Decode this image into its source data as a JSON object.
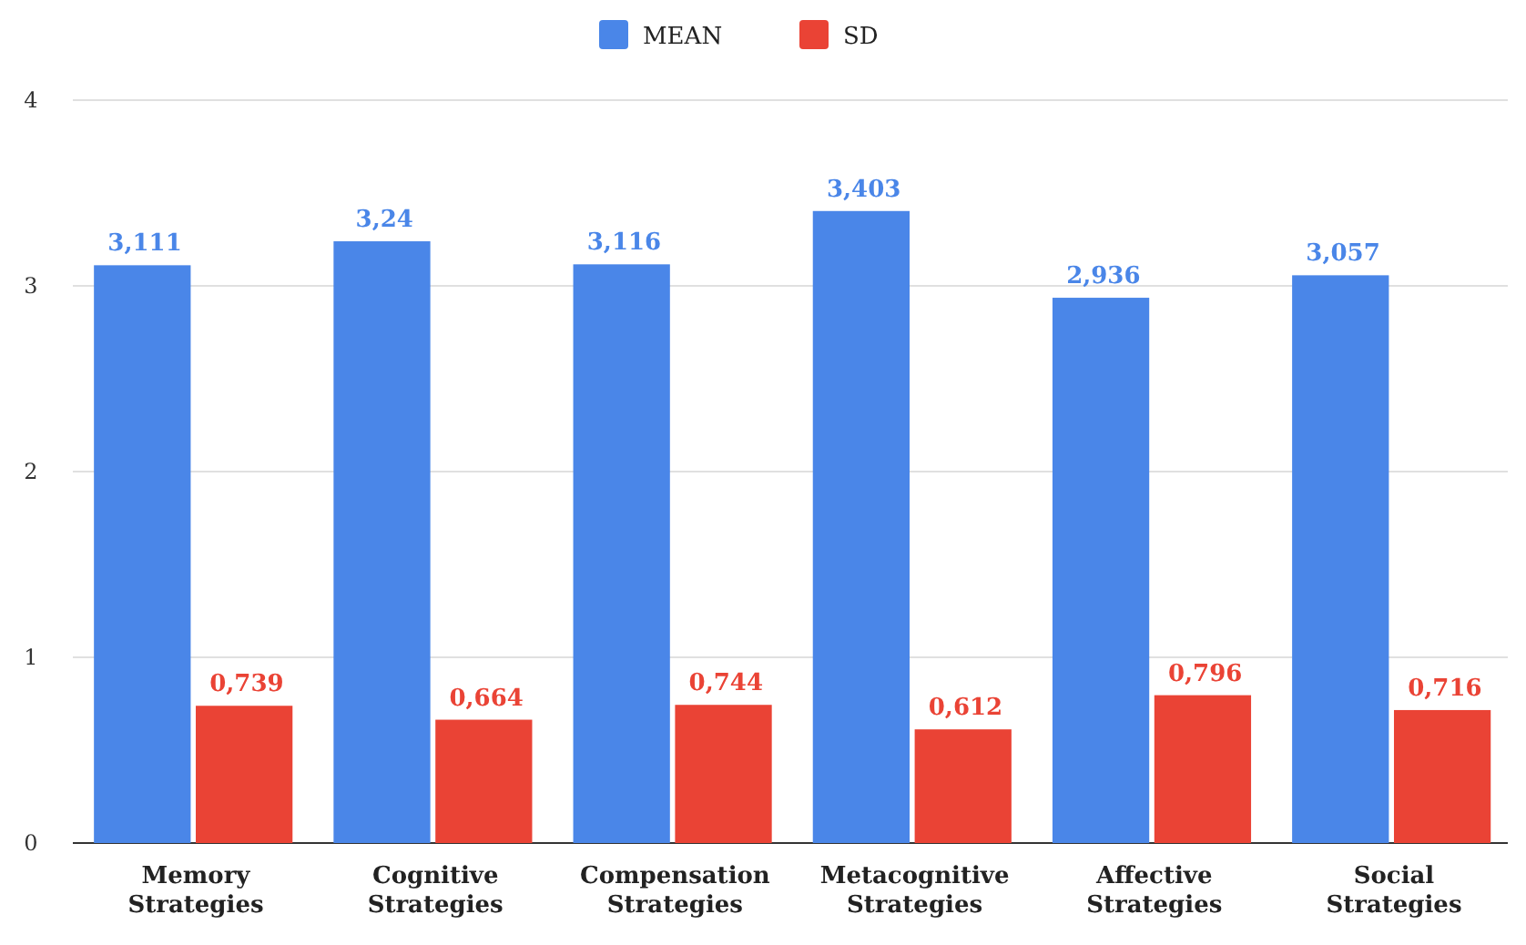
{
  "chart_data": {
    "type": "bar",
    "categories": [
      "Memory Strategies",
      "Cognitive Strategies",
      "Compensation Strategies",
      "Metacognitive Strategies",
      "Affective Strategies",
      "Social Strategies"
    ],
    "series": [
      {
        "name": "MEAN",
        "color": "#4a86e8",
        "values": [
          3.111,
          3.24,
          3.116,
          3.403,
          2.936,
          3.057
        ],
        "value_labels": [
          "3,111",
          "3,24",
          "3,116",
          "3,403",
          "2,936",
          "3,057"
        ]
      },
      {
        "name": "SD",
        "color": "#ea4335",
        "values": [
          0.739,
          0.664,
          0.744,
          0.612,
          0.796,
          0.716
        ],
        "value_labels": [
          "0,739",
          "0,664",
          "0,744",
          "0,612",
          "0,796",
          "0,716"
        ]
      }
    ],
    "ylim": [
      0,
      4
    ],
    "yticks": [
      0,
      1,
      2,
      3,
      4
    ],
    "grid": "y",
    "legend": "top"
  }
}
